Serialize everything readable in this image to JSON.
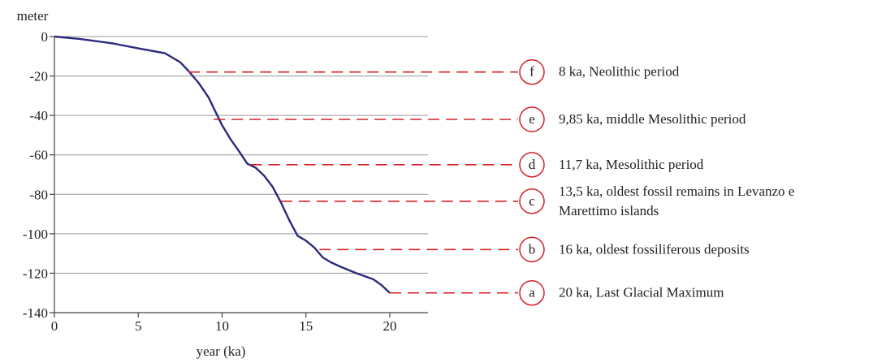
{
  "chart_data": {
    "type": "line",
    "title": "",
    "xlabel": "year (ka)",
    "ylabel": "meter",
    "xlim": [
      0,
      22.3
    ],
    "ylim": [
      -140,
      0
    ],
    "xticks": [
      0,
      5,
      10,
      15,
      20
    ],
    "yticks": [
      0,
      -20,
      -40,
      -60,
      -80,
      -100,
      -120,
      -140
    ],
    "grid": true,
    "series": [
      {
        "color": "#2b2a7d",
        "x": [
          0,
          1.5,
          3.5,
          5,
          6.6,
          7.5,
          8,
          8.6,
          9.2,
          9.6,
          10,
          10.5,
          11,
          11.5,
          12,
          12.5,
          13,
          13.5,
          14,
          14.5,
          15,
          15.5,
          16,
          16.5,
          17,
          18,
          19,
          19.5,
          20
        ],
        "y": [
          0,
          -1.2,
          -3.5,
          -6,
          -8.5,
          -13,
          -17.5,
          -23.5,
          -31,
          -38,
          -45,
          -52,
          -58,
          -64.5,
          -66.5,
          -70.5,
          -76,
          -84,
          -93,
          -101,
          -103.5,
          -107,
          -112,
          -114.5,
          -116.5,
          -120,
          -123,
          -126,
          -130
        ]
      }
    ],
    "annotations": [
      {
        "letter": "f",
        "text_lines": [
          "8 ka, Neolithic period"
        ],
        "x": 8,
        "y": -18
      },
      {
        "letter": "e",
        "text_lines": [
          "9,85 ka, middle Mesolithic period"
        ],
        "x": 9.5,
        "y": -42
      },
      {
        "letter": "d",
        "text_lines": [
          "11,7 ka, Mesolithic period"
        ],
        "x": 11.7,
        "y": -65
      },
      {
        "letter": "c",
        "text_lines": [
          "13,5 ka, oldest fossil remains in Levanzo e",
          "Marettimo islands"
        ],
        "x": 13.5,
        "y": -83.5
      },
      {
        "letter": "b",
        "text_lines": [
          "16 ka, oldest fossiliferous deposits"
        ],
        "x": 15.8,
        "y": -108
      },
      {
        "letter": "a",
        "text_lines": [
          "20 ka, Last Glacial Maximum"
        ],
        "x": 20,
        "y": -130
      }
    ],
    "colors": {
      "series": "#2b2a7d",
      "annotation": "#d32128",
      "grid": "#9a9a9a"
    }
  }
}
